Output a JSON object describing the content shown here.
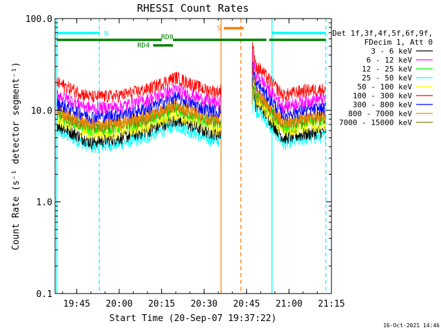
{
  "chart_data": {
    "type": "line",
    "title": "RHESSI Count Rates",
    "xlabel": "Start Time (20-Sep-07 19:37:22)",
    "ylabel": "Count Rate (s⁻¹ detector segment⁻¹)",
    "yscale": "log",
    "ylim": [
      0.1,
      100.0
    ],
    "xlim": [
      "19:37:22",
      "21:15"
    ],
    "x_ticks": [
      "19:45",
      "20:00",
      "20:15",
      "20:30",
      "20:45",
      "21:00",
      "21:15"
    ],
    "y_ticks": [
      "0.1",
      "1.0",
      "10.0",
      "100.0"
    ],
    "legend_placement": "right",
    "legend_header": [
      "Det 1f,3f,4f,5f,6f,9f,",
      "FDecim 1, Att 0"
    ],
    "series": [
      {
        "name": "3 - 6 keV",
        "color": "#000000",
        "points": [
          [
            "19:38",
            7.0
          ],
          [
            "19:50",
            4.5
          ],
          [
            "20:00",
            5.0
          ],
          [
            "20:10",
            6.0
          ],
          [
            "20:20",
            8.0
          ],
          [
            "20:30",
            6.0
          ],
          [
            "20:35",
            5.5
          ],
          [
            "20:49",
            12.0
          ],
          [
            "20:58",
            5.0
          ],
          [
            "21:05",
            5.5
          ],
          [
            "21:13",
            6.0
          ]
        ]
      },
      {
        "name": "6 - 12 keV",
        "color": "#ff00ff",
        "points": [
          [
            "19:38",
            15.0
          ],
          [
            "19:50",
            10.5
          ],
          [
            "20:00",
            11.0
          ],
          [
            "20:10",
            13.0
          ],
          [
            "20:20",
            17.0
          ],
          [
            "20:30",
            13.0
          ],
          [
            "20:35",
            12.0
          ],
          [
            "20:49",
            24.0
          ],
          [
            "20:58",
            11.0
          ],
          [
            "21:05",
            12.5
          ],
          [
            "21:13",
            13.5
          ]
        ]
      },
      {
        "name": "12 - 25 keV",
        "color": "#00ff00",
        "points": [
          [
            "19:38",
            9.0
          ],
          [
            "19:50",
            6.2
          ],
          [
            "20:00",
            6.6
          ],
          [
            "20:10",
            7.8
          ],
          [
            "20:20",
            10.5
          ],
          [
            "20:30",
            7.8
          ],
          [
            "20:35",
            7.2
          ],
          [
            "20:49",
            15.0
          ],
          [
            "20:58",
            6.6
          ],
          [
            "21:05",
            7.5
          ],
          [
            "21:13",
            8.0
          ]
        ]
      },
      {
        "name": "25 - 50 keV",
        "color": "#00ffff",
        "points": [
          [
            "19:38",
            6.0
          ],
          [
            "19:50",
            4.0
          ],
          [
            "20:00",
            4.3
          ],
          [
            "20:10",
            5.1
          ],
          [
            "20:20",
            7.0
          ],
          [
            "20:30",
            5.0
          ],
          [
            "20:35",
            4.6
          ],
          [
            "20:49",
            10.0
          ],
          [
            "20:58",
            4.3
          ],
          [
            "21:05",
            4.9
          ],
          [
            "21:13",
            5.2
          ]
        ]
      },
      {
        "name": "50 - 100 keV",
        "color": "#ffff00",
        "points": [
          [
            "19:38",
            8.0
          ],
          [
            "19:50",
            5.5
          ],
          [
            "20:00",
            5.8
          ],
          [
            "20:10",
            6.8
          ],
          [
            "20:20",
            9.2
          ],
          [
            "20:30",
            6.8
          ],
          [
            "20:35",
            6.3
          ],
          [
            "20:49",
            13.0
          ],
          [
            "20:58",
            5.8
          ],
          [
            "21:05",
            6.6
          ],
          [
            "21:13",
            7.0
          ]
        ]
      },
      {
        "name": "100 - 300 keV",
        "color": "#ff0000",
        "points": [
          [
            "19:38",
            20.0
          ],
          [
            "19:50",
            14.0
          ],
          [
            "20:00",
            14.5
          ],
          [
            "20:10",
            17.0
          ],
          [
            "20:20",
            23.0
          ],
          [
            "20:30",
            17.0
          ],
          [
            "20:35",
            16.0
          ],
          [
            "20:49",
            30.0
          ],
          [
            "20:58",
            14.5
          ],
          [
            "21:05",
            16.5
          ],
          [
            "21:13",
            17.0
          ]
        ]
      },
      {
        "name": "300 - 800 keV",
        "color": "#0000ff",
        "points": [
          [
            "19:38",
            12.0
          ],
          [
            "19:50",
            8.5
          ],
          [
            "20:00",
            9.0
          ],
          [
            "20:10",
            10.5
          ],
          [
            "20:20",
            14.0
          ],
          [
            "20:30",
            10.5
          ],
          [
            "20:35",
            9.7
          ],
          [
            "20:49",
            19.0
          ],
          [
            "20:58",
            9.0
          ],
          [
            "21:05",
            10.0
          ],
          [
            "21:13",
            10.5
          ]
        ]
      },
      {
        "name": "800 - 7000 keV",
        "color": "#ff8000",
        "points": [
          [
            "19:38",
            10.0
          ],
          [
            "19:50",
            7.0
          ],
          [
            "20:00",
            7.4
          ],
          [
            "20:10",
            8.7
          ],
          [
            "20:20",
            11.8
          ],
          [
            "20:30",
            8.7
          ],
          [
            "20:35",
            8.1
          ],
          [
            "20:49",
            16.0
          ],
          [
            "20:58",
            7.4
          ],
          [
            "21:05",
            8.4
          ],
          [
            "21:13",
            8.9
          ]
        ]
      },
      {
        "name": "7000 - 15000 keV",
        "color": "#808000",
        "points": [
          [
            "19:38",
            9.5
          ],
          [
            "19:50",
            6.6
          ],
          [
            "20:00",
            7.0
          ],
          [
            "20:10",
            8.2
          ],
          [
            "20:20",
            11.0
          ],
          [
            "20:30",
            8.2
          ],
          [
            "20:35",
            7.6
          ],
          [
            "20:49",
            15.0
          ],
          [
            "20:58",
            7.0
          ],
          [
            "21:05",
            7.9
          ],
          [
            "21:13",
            8.4
          ]
        ]
      }
    ],
    "gaps": [
      [
        "20:36",
        "20:47"
      ]
    ],
    "vertical_markers": [
      {
        "time": "19:38",
        "color": "#00ffff",
        "style": "solid"
      },
      {
        "time": "19:53",
        "color": "#00ffff",
        "style": "dashed"
      },
      {
        "time": "20:36",
        "color": "#ff8000",
        "style": "solid"
      },
      {
        "time": "20:43",
        "color": "#ff8000",
        "style": "dashed"
      },
      {
        "time": "20:54",
        "color": "#00ffff",
        "style": "solid"
      },
      {
        "time": "21:13",
        "color": "#00ffff",
        "style": "dashed"
      }
    ],
    "flag_bars": [
      {
        "label": "N",
        "color": "#00ffff",
        "segments": [
          [
            "19:38",
            "19:53"
          ],
          [
            "20:54",
            "21:13"
          ]
        ]
      },
      {
        "label": "S",
        "color": "#ff8000",
        "segments": [
          [
            "20:37",
            "20:44"
          ]
        ]
      },
      {
        "label": "RD0",
        "color": "#008000",
        "segments": [
          [
            "19:38",
            "20:15"
          ],
          [
            "20:19",
            "20:52"
          ],
          [
            "20:53",
            "21:13"
          ]
        ]
      },
      {
        "label": "RD4",
        "color": "#008000",
        "segments": [
          [
            "20:12",
            "20:19"
          ]
        ]
      }
    ],
    "timestamp": "16-Oct-2021 14:46"
  }
}
